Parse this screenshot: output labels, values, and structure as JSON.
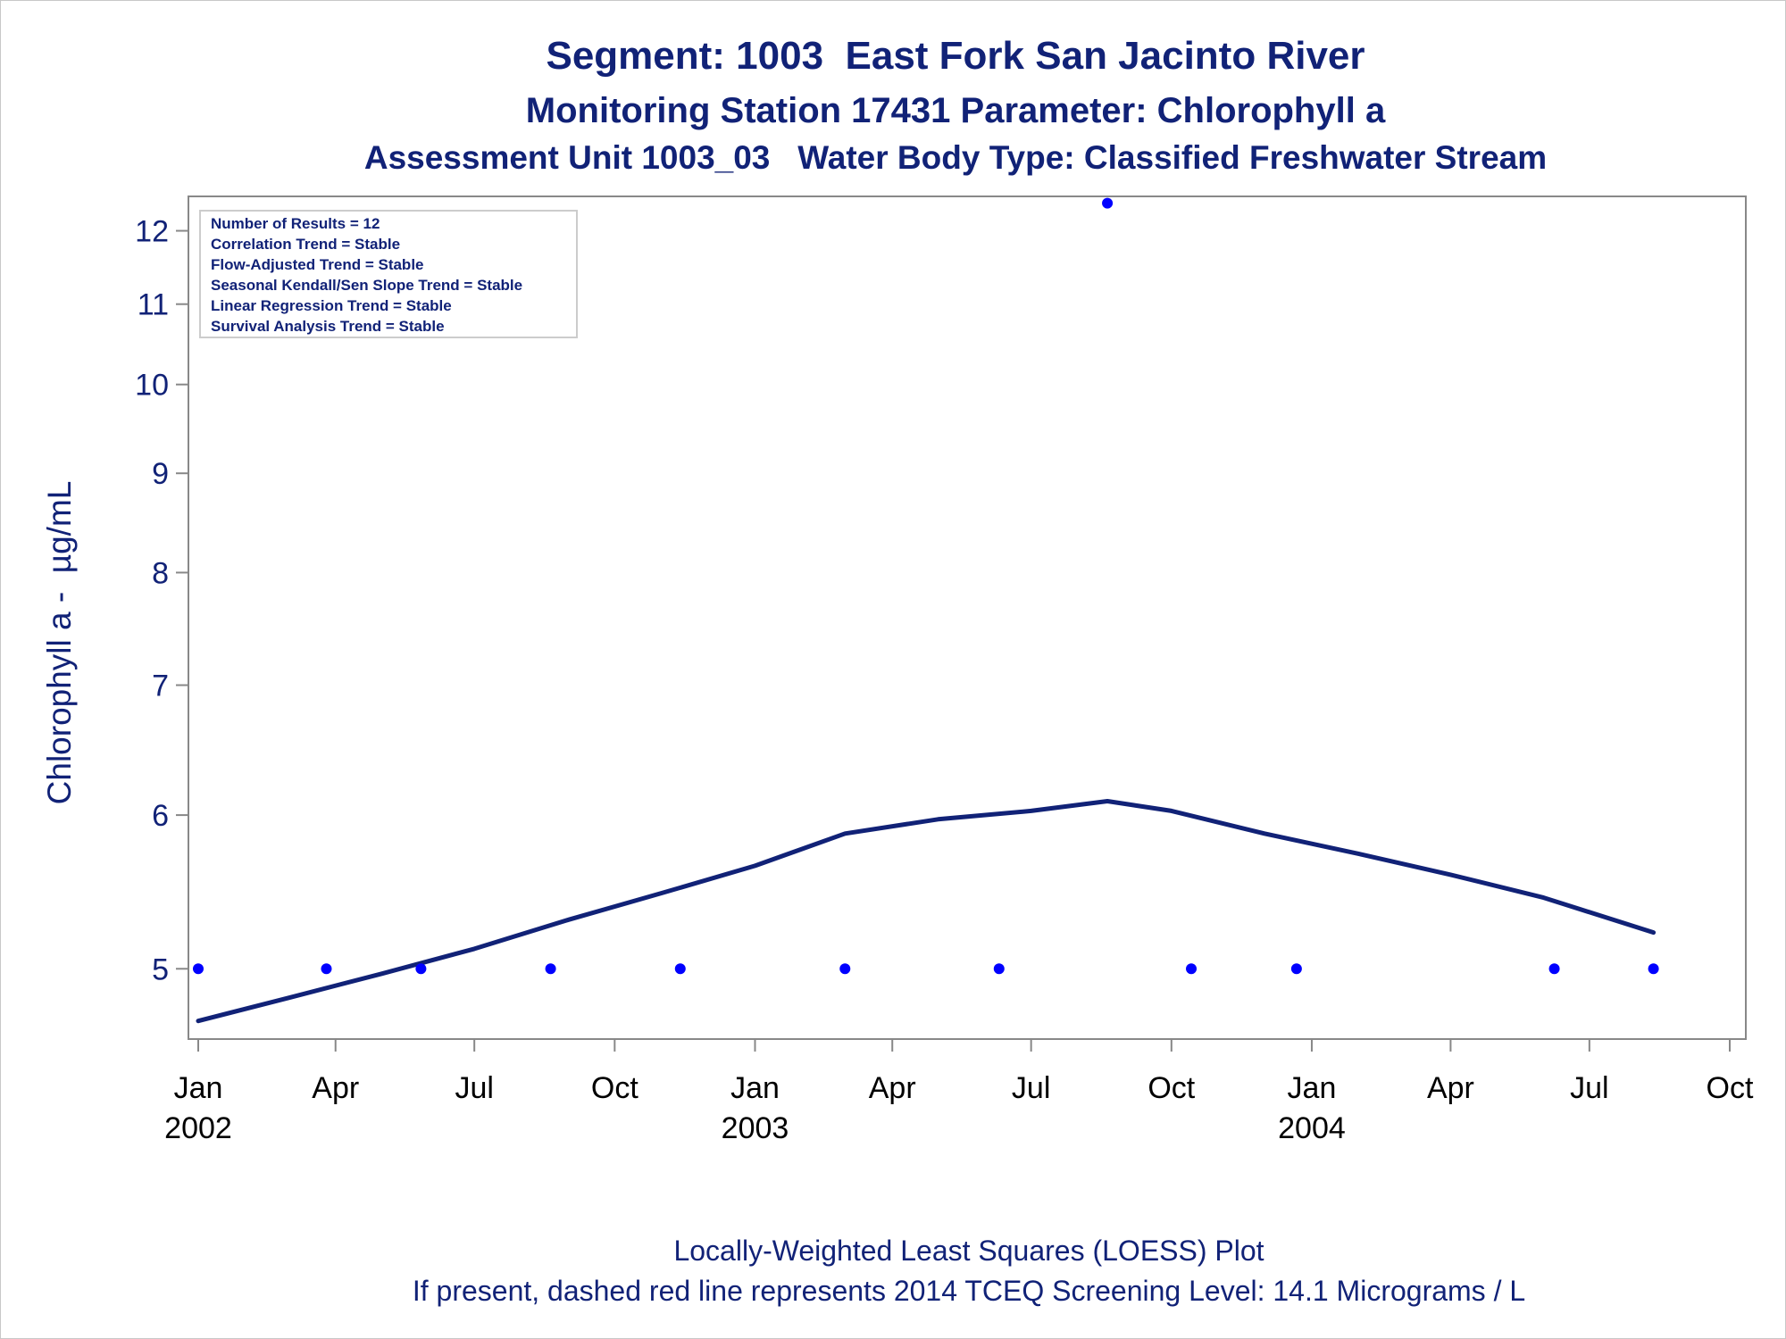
{
  "titles": {
    "line1": "Segment: 1003  East Fork San Jacinto River",
    "line2": "Monitoring Station 17431 Parameter: Chlorophyll a",
    "line3": "Assessment Unit 1003_03   Water Body Type: Classified Freshwater Stream"
  },
  "footer": {
    "line1": "Locally-Weighted Least Squares (LOESS) Plot",
    "line2": "If present, dashed red line represents 2014 TCEQ Screening Level: 14.1 Micrograms / L"
  },
  "legend": [
    "Number of Results = 12",
    "Correlation Trend = Stable",
    "Flow-Adjusted Trend = Stable",
    "Seasonal Kendall/Sen Slope Trend = Stable",
    "Linear Regression Trend = Stable",
    "Survival Analysis Trend = Stable"
  ],
  "colors": {
    "title": "#112277",
    "points": "#0000ff",
    "loess": "#112277",
    "axis": "#888888"
  },
  "chart_data": {
    "type": "scatter",
    "yscale": "log",
    "ylabel": "Chlorophyll a -  µg/mL",
    "xlabel": "",
    "yticks": [
      5,
      6,
      7,
      8,
      9,
      10,
      11,
      12
    ],
    "ylim": [
      4.6,
      12.5
    ],
    "xlim": [
      "2002-01-01",
      "2004-10-01"
    ],
    "xticks": [
      {
        "date": "2002-01-01",
        "label": "Jan",
        "year": "2002"
      },
      {
        "date": "2002-04-01",
        "label": "Apr",
        "year": ""
      },
      {
        "date": "2002-07-01",
        "label": "Jul",
        "year": ""
      },
      {
        "date": "2002-10-01",
        "label": "Oct",
        "year": ""
      },
      {
        "date": "2003-01-01",
        "label": "Jan",
        "year": "2003"
      },
      {
        "date": "2003-04-01",
        "label": "Apr",
        "year": ""
      },
      {
        "date": "2003-07-01",
        "label": "Jul",
        "year": ""
      },
      {
        "date": "2003-10-01",
        "label": "Oct",
        "year": ""
      },
      {
        "date": "2004-01-01",
        "label": "Jan",
        "year": "2004"
      },
      {
        "date": "2004-04-01",
        "label": "Apr",
        "year": ""
      },
      {
        "date": "2004-07-01",
        "label": "Jul",
        "year": ""
      },
      {
        "date": "2004-10-01",
        "label": "Oct",
        "year": ""
      }
    ],
    "series": [
      {
        "kind": "points",
        "x": [
          "2002-01-01",
          "2002-03-26",
          "2002-05-27",
          "2002-08-20",
          "2002-11-13",
          "2003-03-01",
          "2003-06-10",
          "2003-08-20",
          "2003-10-14",
          "2003-12-22",
          "2004-06-08",
          "2004-08-12"
        ],
        "y": [
          5,
          5,
          5,
          5,
          5,
          5,
          5,
          12.4,
          5,
          5,
          5,
          5
        ]
      },
      {
        "kind": "loess",
        "x": [
          "2002-01-01",
          "2002-03-01",
          "2002-05-01",
          "2002-07-01",
          "2002-09-01",
          "2002-11-01",
          "2003-01-01",
          "2003-03-01",
          "2003-05-01",
          "2003-07-01",
          "2003-08-20",
          "2003-10-01",
          "2003-12-01",
          "2004-02-01",
          "2004-04-01",
          "2004-06-01",
          "2004-08-12"
        ],
        "y": [
          4.7,
          4.83,
          4.97,
          5.12,
          5.3,
          5.47,
          5.65,
          5.87,
          5.97,
          6.03,
          6.1,
          6.03,
          5.87,
          5.73,
          5.59,
          5.44,
          5.22
        ]
      }
    ]
  }
}
